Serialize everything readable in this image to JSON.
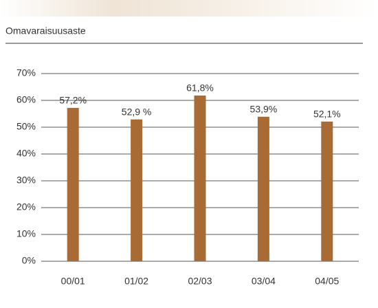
{
  "chart_data": {
    "type": "bar",
    "title": "Omavaraisuusaste",
    "categories": [
      "00/01",
      "01/02",
      "02/03",
      "03/04",
      "04/05"
    ],
    "values": [
      57.2,
      52.9,
      61.8,
      53.9,
      52.1
    ],
    "value_labels": [
      "57,2%",
      "52,9 %",
      "61,8%",
      "53,9%",
      "52,1%"
    ],
    "color": "#a86b36",
    "ylim": [
      0,
      70
    ],
    "yticks": [
      {
        "value": 0,
        "label": "0%"
      },
      {
        "value": 10,
        "label": "10%"
      },
      {
        "value": 20,
        "label": "20%"
      },
      {
        "value": 30,
        "label": "30%"
      },
      {
        "value": 40,
        "label": "40%"
      },
      {
        "value": 50,
        "label": "50%"
      },
      {
        "value": 60,
        "label": "60%"
      },
      {
        "value": 70,
        "label": "70%"
      }
    ],
    "grid": true
  }
}
